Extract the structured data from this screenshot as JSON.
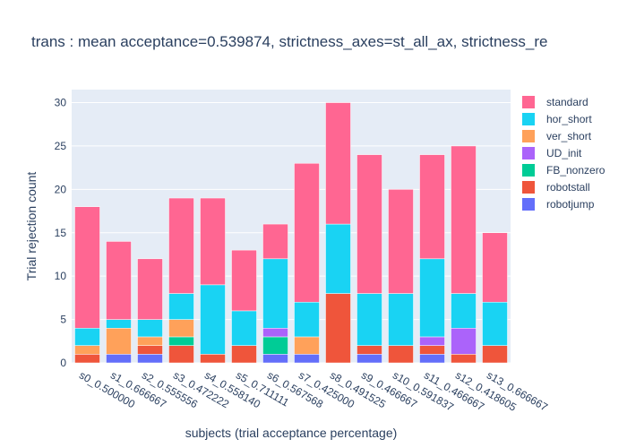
{
  "chart_data": {
    "type": "bar",
    "barmode": "stack",
    "title": "trans : mean acceptance=0.539874, strictness_axes=st_all_ax, strictness_re",
    "xlabel": "subjects (trial acceptance percentage)",
    "ylabel": "Trial rejection count",
    "ylim": [
      0,
      31.5
    ],
    "yticks": [
      0,
      5,
      10,
      15,
      20,
      25,
      30
    ],
    "grid": true,
    "legend_position": "right",
    "categories": [
      "s0_0.500000",
      "s1_0.666667",
      "s2_0.555556",
      "s3_0.472222",
      "s4_0.558140",
      "s5_0.711111",
      "s6_0.567568",
      "s7_0.425000",
      "s8_0.491525",
      "s9_0.466667",
      "s10_0.591837",
      "s11_0.466667",
      "s12_0.418605",
      "s13_0.666667"
    ],
    "series": [
      {
        "name": "robotjump",
        "color": "#636efa",
        "values": [
          0,
          1,
          1,
          0,
          0,
          0,
          1,
          1,
          0,
          1,
          0,
          1,
          0,
          0
        ]
      },
      {
        "name": "robotstall",
        "color": "#ef553b",
        "values": [
          1,
          0,
          1,
          2,
          1,
          2,
          0,
          0,
          8,
          1,
          2,
          1,
          1,
          2
        ]
      },
      {
        "name": "FB_nonzero",
        "color": "#00cc96",
        "values": [
          0,
          0,
          0,
          1,
          0,
          0,
          2,
          0,
          0,
          0,
          0,
          0,
          0,
          0
        ]
      },
      {
        "name": "UD_init",
        "color": "#ab63fa",
        "values": [
          0,
          0,
          0,
          0,
          0,
          0,
          1,
          0,
          0,
          0,
          0,
          1,
          3,
          0
        ]
      },
      {
        "name": "ver_short",
        "color": "#ffa15a",
        "values": [
          1,
          3,
          1,
          2,
          0,
          0,
          0,
          2,
          0,
          0,
          0,
          0,
          0,
          0
        ]
      },
      {
        "name": "hor_short",
        "color": "#19d3f3",
        "values": [
          2,
          1,
          2,
          3,
          8,
          4,
          8,
          4,
          8,
          6,
          6,
          9,
          4,
          5
        ]
      },
      {
        "name": "standard",
        "color": "#ff6692",
        "values": [
          14,
          9,
          7,
          11,
          10,
          7,
          4,
          16,
          14,
          16,
          12,
          12,
          17,
          8
        ]
      }
    ],
    "legend_order": [
      "standard",
      "hor_short",
      "ver_short",
      "UD_init",
      "FB_nonzero",
      "robotstall",
      "robotjump"
    ],
    "plot_background": "#e5ecf6",
    "grid_color": "#ffffff"
  }
}
